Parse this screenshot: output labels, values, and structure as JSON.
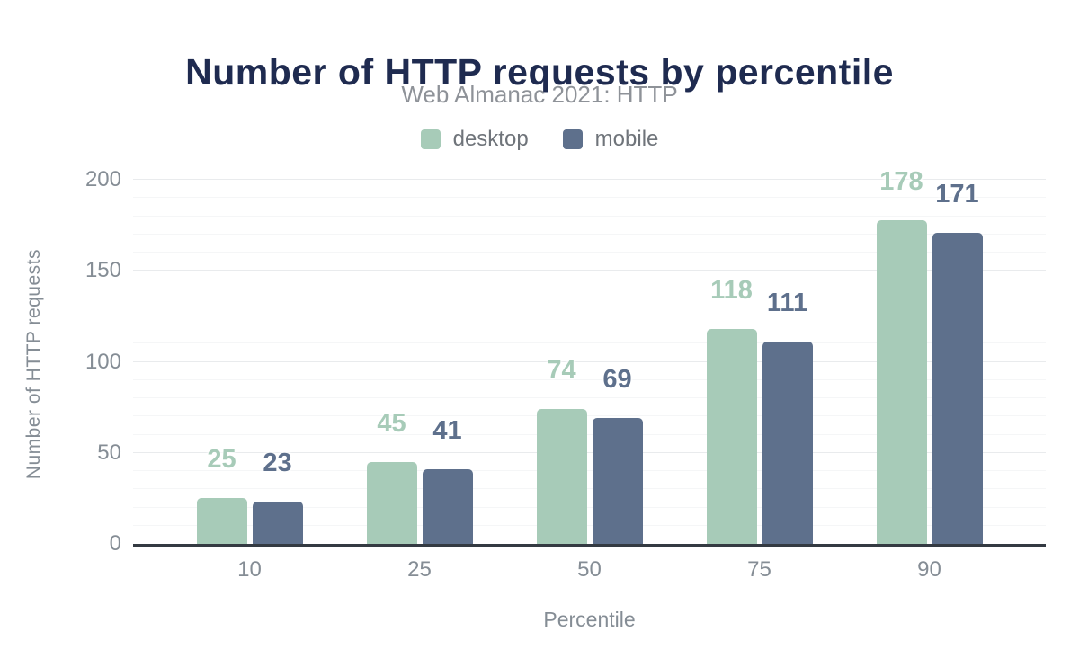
{
  "chart_data": {
    "type": "bar",
    "title": "Number of HTTP requests by percentile",
    "subtitle": "Web Almanac 2021: HTTP",
    "xlabel": "Percentile",
    "ylabel": "Number of HTTP requests",
    "categories": [
      "10",
      "25",
      "50",
      "75",
      "90"
    ],
    "series": [
      {
        "name": "desktop",
        "color": "#a7cbb8",
        "values": [
          25,
          45,
          74,
          118,
          178
        ]
      },
      {
        "name": "mobile",
        "color": "#5e708c",
        "values": [
          23,
          41,
          69,
          111,
          171
        ]
      }
    ],
    "ylim": [
      0,
      200
    ],
    "yticks": [
      0,
      50,
      100,
      150,
      200
    ],
    "y_minor_step": 10,
    "grid": "horizontal",
    "legend_position": "top",
    "value_labels": true
  },
  "colors": {
    "background": "#ffffff",
    "title": "#1f2b50",
    "subtitle": "#8e9298",
    "legend_text": "#6f747a",
    "axis_text": "#858d95",
    "axis_line": "#343a42",
    "grid_minor": "#f5f6f7",
    "grid_major": "#e9ebed"
  }
}
